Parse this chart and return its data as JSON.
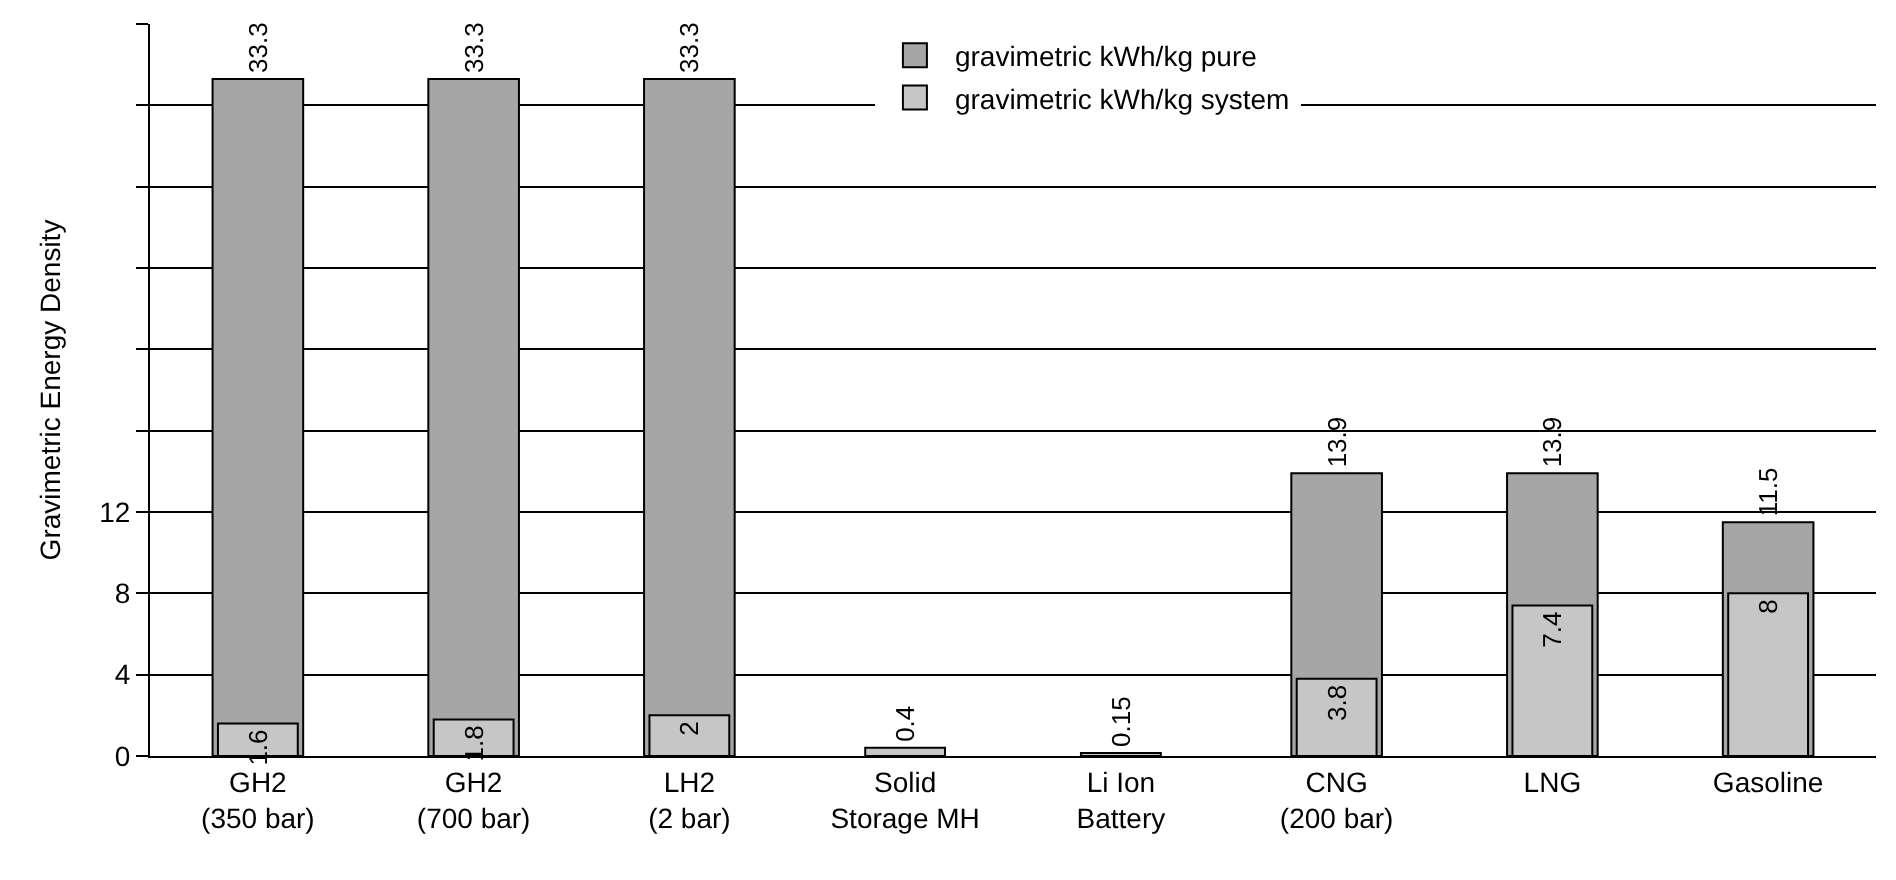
{
  "chart_data": {
    "type": "bar",
    "ylabel": "Gravimetric Energy Density",
    "categories": [
      "GH2\n(350 bar)",
      "GH2\n(700 bar)",
      "LH2\n(2 bar)",
      "Solid\nStorage MH",
      "Li Ion\nBattery",
      "CNG\n(200 bar)",
      "LNG",
      "Gasoline"
    ],
    "series": [
      {
        "name": "gravimetric kWh/kg pure",
        "color": "#a6a6a6",
        "values": [
          33.3,
          33.3,
          33.3,
          null,
          null,
          13.9,
          13.9,
          11.5
        ]
      },
      {
        "name": "gravimetric kWh/kg system",
        "color": "#c6c6c6",
        "values": [
          1.6,
          1.8,
          2,
          0.4,
          0.15,
          3.8,
          7.4,
          8
        ]
      }
    ],
    "ylim": [
      0,
      36
    ],
    "yticks": [
      0,
      4,
      8,
      12,
      {
        "value": 16,
        "label": null
      },
      {
        "value": 20,
        "label": null
      },
      {
        "value": 24,
        "label": null
      },
      {
        "value": 28,
        "label": null
      },
      {
        "value": 32,
        "label": null
      },
      {
        "value": 36,
        "label": null
      }
    ],
    "grid": "y",
    "data_labels": true,
    "legend": "top"
  }
}
